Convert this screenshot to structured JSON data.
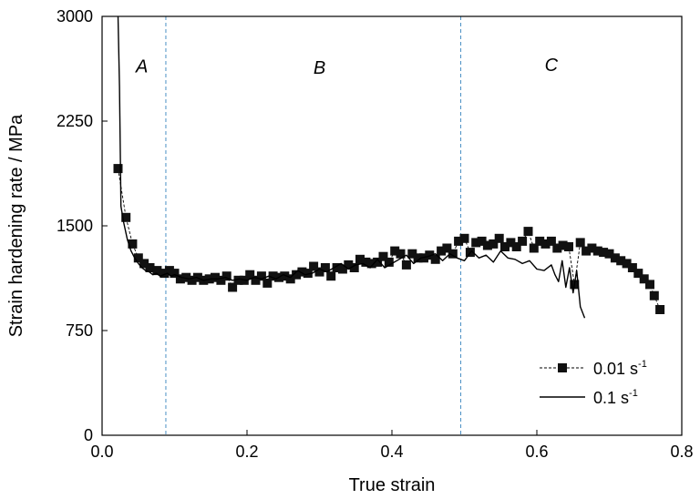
{
  "chart_data": {
    "type": "scatter",
    "xlabel": "True strain",
    "ylabel": "Strain hardening rate / MPa",
    "xlim": [
      0.0,
      0.8
    ],
    "ylim": [
      0,
      3000
    ],
    "xticks": [
      "0.0",
      "0.2",
      "0.4",
      "0.6",
      "0.8"
    ],
    "yticks": [
      "0",
      "750",
      "1500",
      "2250",
      "3000"
    ],
    "grid": false,
    "legend_position": "bottom-right",
    "region_labels": [
      {
        "label": "A",
        "x": 0.055,
        "y": 2600
      },
      {
        "label": "B",
        "x": 0.3,
        "y": 2590
      },
      {
        "label": "C",
        "x": 0.62,
        "y": 2610
      }
    ],
    "region_boundaries": [
      0.088,
      0.495
    ],
    "boundary_color": "#4a90c4",
    "series": [
      {
        "name": "0.01 s",
        "unit_exponent": "-1",
        "style": "dashed-square",
        "color": "#000000",
        "x": [
          0.022,
          0.033,
          0.042,
          0.05,
          0.058,
          0.066,
          0.076,
          0.086,
          0.093,
          0.1,
          0.108,
          0.116,
          0.124,
          0.132,
          0.14,
          0.148,
          0.156,
          0.164,
          0.172,
          0.18,
          0.188,
          0.196,
          0.204,
          0.212,
          0.22,
          0.228,
          0.236,
          0.244,
          0.252,
          0.26,
          0.268,
          0.276,
          0.284,
          0.292,
          0.3,
          0.308,
          0.316,
          0.324,
          0.332,
          0.34,
          0.348,
          0.356,
          0.364,
          0.372,
          0.38,
          0.388,
          0.396,
          0.404,
          0.412,
          0.42,
          0.428,
          0.436,
          0.444,
          0.452,
          0.46,
          0.468,
          0.476,
          0.484,
          0.492,
          0.5,
          0.508,
          0.516,
          0.524,
          0.532,
          0.54,
          0.548,
          0.556,
          0.564,
          0.572,
          0.58,
          0.588,
          0.596,
          0.604,
          0.612,
          0.62,
          0.628,
          0.636,
          0.644,
          0.652,
          0.66,
          0.668,
          0.676,
          0.684,
          0.692,
          0.7,
          0.708,
          0.716,
          0.724,
          0.732,
          0.74,
          0.748,
          0.756,
          0.762,
          0.77
        ],
        "y": [
          1910,
          1560,
          1370,
          1270,
          1230,
          1200,
          1180,
          1160,
          1180,
          1160,
          1120,
          1130,
          1110,
          1130,
          1110,
          1120,
          1130,
          1110,
          1140,
          1060,
          1110,
          1110,
          1150,
          1110,
          1140,
          1090,
          1140,
          1130,
          1140,
          1120,
          1150,
          1170,
          1160,
          1210,
          1170,
          1200,
          1140,
          1200,
          1190,
          1220,
          1200,
          1260,
          1240,
          1230,
          1240,
          1280,
          1240,
          1320,
          1300,
          1220,
          1300,
          1270,
          1270,
          1290,
          1260,
          1320,
          1340,
          1300,
          1390,
          1410,
          1310,
          1380,
          1390,
          1360,
          1370,
          1410,
          1350,
          1380,
          1350,
          1390,
          1460,
          1340,
          1390,
          1370,
          1390,
          1340,
          1360,
          1350,
          1080,
          1380,
          1320,
          1340,
          1320,
          1310,
          1300,
          1270,
          1250,
          1230,
          1200,
          1160,
          1120,
          1080,
          1000,
          900
        ]
      },
      {
        "name": "0.1 s",
        "unit_exponent": "-1",
        "style": "solid",
        "color": "#000000",
        "x": [
          0.022,
          0.024,
          0.026,
          0.03,
          0.035,
          0.04,
          0.045,
          0.05,
          0.055,
          0.06,
          0.065,
          0.07,
          0.075,
          0.08,
          0.085,
          0.09,
          0.095,
          0.1,
          0.11,
          0.12,
          0.13,
          0.14,
          0.15,
          0.16,
          0.17,
          0.18,
          0.19,
          0.2,
          0.21,
          0.22,
          0.23,
          0.24,
          0.25,
          0.26,
          0.27,
          0.28,
          0.29,
          0.3,
          0.31,
          0.32,
          0.33,
          0.34,
          0.35,
          0.36,
          0.37,
          0.38,
          0.39,
          0.4,
          0.41,
          0.42,
          0.43,
          0.44,
          0.45,
          0.46,
          0.47,
          0.48,
          0.49,
          0.5,
          0.51,
          0.52,
          0.53,
          0.54,
          0.55,
          0.56,
          0.57,
          0.58,
          0.59,
          0.6,
          0.61,
          0.62,
          0.625,
          0.63,
          0.635,
          0.64,
          0.645,
          0.65,
          0.655,
          0.66,
          0.666
        ],
        "y": [
          3000,
          2500,
          1640,
          1520,
          1400,
          1320,
          1270,
          1230,
          1200,
          1180,
          1170,
          1150,
          1160,
          1140,
          1150,
          1160,
          1140,
          1150,
          1130,
          1120,
          1130,
          1110,
          1120,
          1120,
          1130,
          1110,
          1120,
          1110,
          1130,
          1120,
          1140,
          1120,
          1150,
          1130,
          1180,
          1150,
          1160,
          1190,
          1170,
          1200,
          1230,
          1190,
          1220,
          1230,
          1200,
          1260,
          1200,
          1230,
          1260,
          1290,
          1230,
          1270,
          1280,
          1300,
          1250,
          1300,
          1270,
          1250,
          1320,
          1270,
          1290,
          1240,
          1320,
          1270,
          1260,
          1230,
          1250,
          1190,
          1180,
          1220,
          1150,
          1100,
          1250,
          1060,
          1200,
          1020,
          1180,
          920,
          840
        ]
      }
    ]
  }
}
